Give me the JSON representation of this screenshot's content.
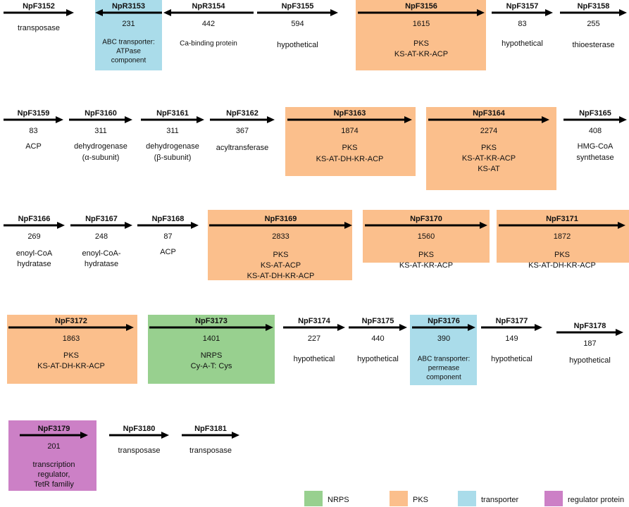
{
  "genes": [
    {
      "name": "NpF3152",
      "function": [
        "transposase"
      ]
    },
    {
      "name": "NpR3153",
      "length": 231,
      "function": [
        "ABC transporter:",
        "ATPase",
        "component"
      ]
    },
    {
      "name": "NpR3154",
      "length": 442,
      "function": [
        "Ca-binding protein"
      ]
    },
    {
      "name": "NpF3155",
      "length": 594,
      "function": [
        "hypothetical"
      ]
    },
    {
      "name": "NpF3156",
      "length": 1615,
      "function": [
        "PKS",
        "KS-AT-KR-ACP"
      ]
    },
    {
      "name": "NpF3157",
      "length": 83,
      "function": [
        "hypothetical"
      ]
    },
    {
      "name": "NpF3158",
      "length": 255,
      "function": [
        "thioesterase"
      ]
    },
    {
      "name": "NpF3159",
      "length": 83,
      "function": [
        "ACP"
      ]
    },
    {
      "name": "NpF3160",
      "length": 311,
      "function": [
        "dehydrogenase",
        "(α-subunit)"
      ]
    },
    {
      "name": "NpF3161",
      "length": 311,
      "function": [
        "dehydrogenase",
        "(β-subunit)"
      ]
    },
    {
      "name": "NpF3162",
      "length": 367,
      "function": [
        "acyltransferase"
      ]
    },
    {
      "name": "NpF3163",
      "length": 1874,
      "function": [
        "PKS",
        "KS-AT-DH-KR-ACP"
      ]
    },
    {
      "name": "NpF3164",
      "length": 2274,
      "function": [
        "PKS",
        "KS-AT-KR-ACP",
        "KS-AT"
      ]
    },
    {
      "name": "NpF3165",
      "length": 408,
      "function": [
        "HMG-CoA",
        "synthetase"
      ]
    },
    {
      "name": "NpF3166",
      "length": 269,
      "function": [
        "enoyl-CoA",
        "hydratase"
      ]
    },
    {
      "name": "NpF3167",
      "length": 248,
      "function": [
        "enoyl-CoA-",
        "hydratase"
      ]
    },
    {
      "name": "NpF3168",
      "length": 87,
      "function": [
        "ACP"
      ]
    },
    {
      "name": "NpF3169",
      "length": 2833,
      "function": [
        "PKS",
        "KS-AT-ACP",
        "KS-AT-DH-KR-ACP"
      ]
    },
    {
      "name": "NpF3170",
      "length": 1560,
      "function": [
        "PKS",
        "KS-AT-KR-ACP"
      ]
    },
    {
      "name": "NpF3171",
      "length": 1872,
      "function": [
        "PKS",
        "KS-AT-DH-KR-ACP"
      ]
    },
    {
      "name": "NpF3172",
      "length": 1863,
      "function": [
        "PKS",
        "KS-AT-DH-KR-ACP"
      ]
    },
    {
      "name": "NpF3173",
      "length": 1401,
      "function": [
        "NRPS",
        "Cy-A-T: Cys"
      ]
    },
    {
      "name": "NpF3174",
      "length": 227,
      "function": [
        "hypothetical"
      ]
    },
    {
      "name": "NpF3175",
      "length": 440,
      "function": [
        "hypothetical"
      ]
    },
    {
      "name": "NpF3176",
      "length": 390,
      "function": [
        "ABC transporter:",
        "permease",
        "component"
      ]
    },
    {
      "name": "NpF3177",
      "length": 149,
      "function": [
        "hypothetical"
      ]
    },
    {
      "name": "NpF3178",
      "length": 187,
      "function": [
        "hypothetical"
      ]
    },
    {
      "name": "NpF3179",
      "length": 201,
      "function": [
        "transcription",
        "regulator,",
        "TetR familiy"
      ]
    },
    {
      "name": "NpF3180",
      "function": [
        "transposase"
      ]
    },
    {
      "name": "NpF3181",
      "function": [
        "transposase"
      ]
    }
  ],
  "legend": [
    {
      "label": "NRPS",
      "color": "#98d08f"
    },
    {
      "label": "PKS",
      "color": "#fbbf8c"
    },
    {
      "label": "transporter",
      "color": "#aadcea"
    },
    {
      "label": "regulator protein",
      "color": "#cc80c6"
    }
  ]
}
